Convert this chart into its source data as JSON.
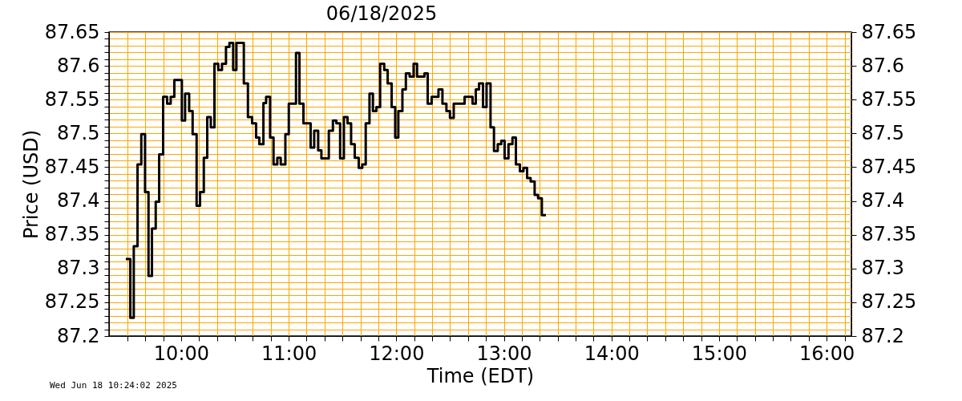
{
  "chart_data": {
    "type": "step",
    "title": "06/18/2025",
    "xlabel": "Time (EDT)",
    "ylabel": "Price (USD)",
    "annotations": [
      "Wed Jun 18 10:24:02 2025"
    ],
    "x": [
      9.486,
      9.528,
      9.56,
      9.595,
      9.63,
      9.665,
      9.697,
      9.729,
      9.764,
      9.796,
      9.833,
      9.87,
      9.903,
      9.937,
      10.007,
      10.037,
      10.075,
      10.107,
      10.144,
      10.176,
      10.211,
      10.243,
      10.276,
      10.31,
      10.345,
      10.38,
      10.417,
      10.449,
      10.484,
      10.514,
      10.583,
      10.621,
      10.66,
      10.697,
      10.727,
      10.765,
      10.79,
      10.827,
      10.859,
      10.894,
      10.926,
      10.969,
      11.001,
      11.068,
      11.1,
      11.137,
      11.204,
      11.237,
      11.274,
      11.304,
      11.373,
      11.411,
      11.443,
      11.478,
      11.513,
      11.547,
      11.58,
      11.614,
      11.651,
      11.684,
      11.716,
      11.751,
      11.783,
      11.815,
      11.85,
      11.888,
      11.92,
      11.957,
      11.99,
      12.019,
      12.057,
      12.089,
      12.124,
      12.161,
      12.193,
      12.262,
      12.292,
      12.329,
      12.392,
      12.429,
      12.466,
      12.499,
      12.534,
      12.635,
      12.709,
      12.739,
      12.769,
      12.806,
      12.839,
      12.876,
      12.908,
      12.943,
      12.976,
      13.007,
      13.043,
      13.08,
      13.112,
      13.149,
      13.182,
      13.216,
      13.249,
      13.286,
      13.318,
      13.353,
      13.391
    ],
    "series": [
      {
        "color": "#000000",
        "values": [
          87.314,
          87.227,
          87.333,
          87.454,
          87.499,
          87.413,
          87.289,
          87.359,
          87.399,
          87.469,
          87.554,
          87.544,
          87.554,
          87.579,
          87.519,
          87.559,
          87.533,
          87.499,
          87.393,
          87.413,
          87.464,
          87.524,
          87.509,
          87.603,
          87.594,
          87.603,
          87.628,
          87.634,
          87.594,
          87.634,
          87.574,
          87.524,
          87.515,
          87.494,
          87.484,
          87.545,
          87.554,
          87.494,
          87.454,
          87.464,
          87.454,
          87.499,
          87.544,
          87.619,
          87.544,
          87.515,
          87.479,
          87.504,
          87.475,
          87.463,
          87.504,
          87.519,
          87.515,
          87.463,
          87.524,
          87.515,
          87.484,
          87.464,
          87.449,
          87.454,
          87.515,
          87.559,
          87.533,
          87.539,
          87.603,
          87.594,
          87.574,
          87.539,
          87.494,
          87.533,
          87.565,
          87.589,
          87.584,
          87.603,
          87.584,
          87.589,
          87.544,
          87.554,
          87.565,
          87.544,
          87.533,
          87.523,
          87.544,
          87.554,
          87.544,
          87.565,
          87.574,
          87.539,
          87.574,
          87.509,
          87.474,
          87.484,
          87.489,
          87.463,
          87.484,
          87.494,
          87.454,
          87.444,
          87.449,
          87.434,
          87.429,
          87.409,
          87.404,
          87.379,
          87.379
        ]
      }
    ],
    "xlim": [
      9.33,
      16.23
    ],
    "xticks": [
      {
        "value": 9.5,
        "label": null
      },
      {
        "value": 9.6667,
        "label": null
      },
      {
        "value": 9.8333,
        "label": null
      },
      {
        "value": 10,
        "label": "10:00"
      },
      {
        "value": 10.1667,
        "label": null
      },
      {
        "value": 10.3333,
        "label": null
      },
      {
        "value": 10.5,
        "label": null
      },
      {
        "value": 10.6667,
        "label": null
      },
      {
        "value": 10.8333,
        "label": null
      },
      {
        "value": 11,
        "label": "11:00"
      },
      {
        "value": 11.1667,
        "label": null
      },
      {
        "value": 11.3333,
        "label": null
      },
      {
        "value": 11.5,
        "label": null
      },
      {
        "value": 11.6667,
        "label": null
      },
      {
        "value": 11.8333,
        "label": null
      },
      {
        "value": 12,
        "label": "12:00"
      },
      {
        "value": 12.1667,
        "label": null
      },
      {
        "value": 12.3333,
        "label": null
      },
      {
        "value": 12.5,
        "label": null
      },
      {
        "value": 12.6667,
        "label": null
      },
      {
        "value": 12.8333,
        "label": null
      },
      {
        "value": 13,
        "label": "13:00"
      },
      {
        "value": 13.1667,
        "label": null
      },
      {
        "value": 13.3333,
        "label": null
      },
      {
        "value": 13.5,
        "label": null
      },
      {
        "value": 13.6667,
        "label": null
      },
      {
        "value": 13.8333,
        "label": null
      },
      {
        "value": 14,
        "label": "14:00"
      },
      {
        "value": 14.1667,
        "label": null
      },
      {
        "value": 14.3333,
        "label": null
      },
      {
        "value": 14.5,
        "label": null
      },
      {
        "value": 14.6667,
        "label": null
      },
      {
        "value": 14.8333,
        "label": null
      },
      {
        "value": 15,
        "label": "15:00"
      },
      {
        "value": 15.1667,
        "label": null
      },
      {
        "value": 15.3333,
        "label": null
      },
      {
        "value": 15.5,
        "label": null
      },
      {
        "value": 15.6667,
        "label": null
      },
      {
        "value": 15.8333,
        "label": null
      },
      {
        "value": 16,
        "label": "16:00"
      },
      {
        "value": 16.1667,
        "label": null
      }
    ],
    "ylim": [
      87.2,
      87.65
    ],
    "yticks": [
      87.2,
      {
        "value": 87.21,
        "label": null
      },
      {
        "value": 87.22,
        "label": null
      },
      {
        "value": 87.23,
        "label": null
      },
      {
        "value": 87.24,
        "label": null
      },
      87.25,
      {
        "value": 87.26,
        "label": null
      },
      {
        "value": 87.27,
        "label": null
      },
      {
        "value": 87.28,
        "label": null
      },
      {
        "value": 87.29,
        "label": null
      },
      87.3,
      {
        "value": 87.31,
        "label": null
      },
      {
        "value": 87.32,
        "label": null
      },
      {
        "value": 87.33,
        "label": null
      },
      {
        "value": 87.34,
        "label": null
      },
      87.35,
      {
        "value": 87.36,
        "label": null
      },
      {
        "value": 87.37,
        "label": null
      },
      {
        "value": 87.38,
        "label": null
      },
      {
        "value": 87.39,
        "label": null
      },
      87.4,
      {
        "value": 87.41,
        "label": null
      },
      {
        "value": 87.42,
        "label": null
      },
      {
        "value": 87.43,
        "label": null
      },
      {
        "value": 87.44,
        "label": null
      },
      87.45,
      {
        "value": 87.46,
        "label": null
      },
      {
        "value": 87.47,
        "label": null
      },
      {
        "value": 87.48,
        "label": null
      },
      {
        "value": 87.49,
        "label": null
      },
      87.5,
      {
        "value": 87.51,
        "label": null
      },
      {
        "value": 87.52,
        "label": null
      },
      {
        "value": 87.53,
        "label": null
      },
      {
        "value": 87.54,
        "label": null
      },
      87.55,
      {
        "value": 87.56,
        "label": null
      },
      {
        "value": 87.57,
        "label": null
      },
      {
        "value": 87.58,
        "label": null
      },
      {
        "value": 87.59,
        "label": null
      },
      87.6,
      {
        "value": 87.61,
        "label": null
      },
      {
        "value": 87.62,
        "label": null
      },
      {
        "value": 87.63,
        "label": null
      },
      {
        "value": 87.64,
        "label": null
      },
      87.65
    ],
    "y2lim": [
      87.2,
      87.65
    ],
    "y2ticks": [
      87.2,
      87.25,
      87.3,
      87.35,
      87.4,
      87.45,
      87.5,
      87.55,
      87.6,
      87.65
    ],
    "grid": true,
    "marker": "none",
    "line_style": "solid"
  }
}
